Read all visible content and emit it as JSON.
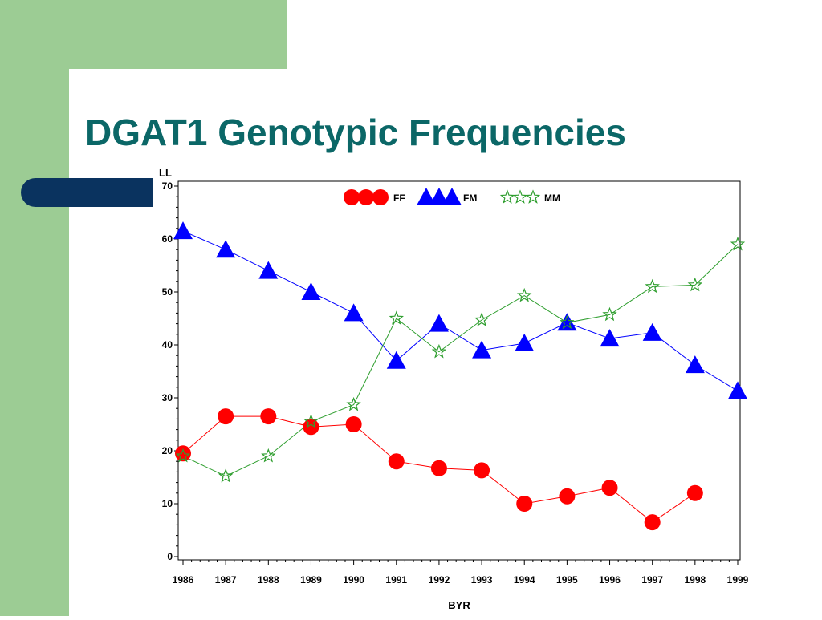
{
  "slide": {
    "title": "DGAT1 Genotypic Frequencies"
  },
  "colors": {
    "background_band": "#9ccc94",
    "accent_bar": "#0a335f",
    "title_text": "#0b6767",
    "FF": "#ff0000",
    "FM": "#0000ff",
    "MM": "#2e9e2e"
  },
  "chart_data": {
    "type": "line",
    "title": "",
    "xlabel": "BYR",
    "ylabel": "LL",
    "x": [
      "1986",
      "1987",
      "1988",
      "1989",
      "1990",
      "1991",
      "1992",
      "1993",
      "1994",
      "1995",
      "1996",
      "1997",
      "1998",
      "1999"
    ],
    "ylim": [
      0,
      70
    ],
    "yticks": [
      "0",
      "10",
      "20",
      "30",
      "40",
      "50",
      "60",
      "70"
    ],
    "grid": false,
    "legend_placement": "top-center",
    "series": [
      {
        "name": "FF",
        "marker": "circle",
        "color": "#ff0000",
        "values": [
          19.5,
          26.5,
          26.5,
          24.5,
          25,
          18,
          16.7,
          16.3,
          10,
          11.4,
          13,
          6.5,
          12,
          null
        ]
      },
      {
        "name": "FM",
        "marker": "triangle",
        "color": "#0000ff",
        "values": [
          61.5,
          58,
          54,
          50,
          46,
          37,
          44,
          39,
          40.3,
          44.2,
          41.2,
          42.3,
          36.2,
          31.3
        ]
      },
      {
        "name": "MM",
        "marker": "star",
        "color": "#2e9e2e",
        "values": [
          19,
          15.2,
          19,
          25.5,
          28.7,
          45,
          38.7,
          44.7,
          49.3,
          44.2,
          45.7,
          51,
          51.3,
          59
        ]
      }
    ]
  }
}
